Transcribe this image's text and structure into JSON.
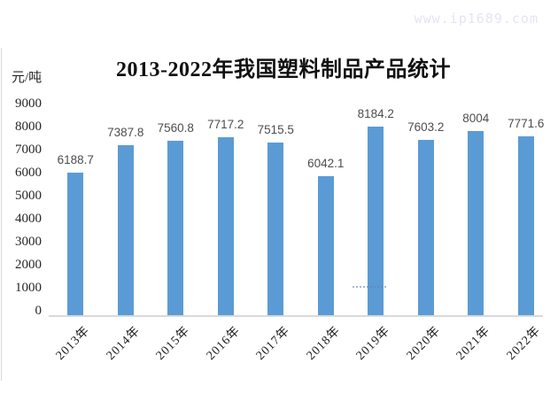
{
  "watermark": "www.ip1689.com",
  "chart_data": {
    "type": "bar",
    "title": "2013-2022年我国塑料制品产品统计",
    "unit_label": "元/吨",
    "categories": [
      "2013年",
      "2014年",
      "2015年",
      "2016年",
      "2017年",
      "2018年",
      "2019年",
      "2020年",
      "2021年",
      "2022年"
    ],
    "values": [
      6188.7,
      7387.8,
      7560.8,
      7717.2,
      7515.5,
      6042.1,
      8184.2,
      7603.2,
      8004,
      7771.6
    ],
    "data_labels": [
      "6188.7",
      "7387.8",
      "7560.8",
      "7717.2",
      "7515.5",
      "6042.1",
      "8184.2",
      "7603.2",
      "8004",
      "7771.6"
    ],
    "yticks": [
      0,
      1000,
      2000,
      3000,
      4000,
      5000,
      6000,
      7000,
      8000,
      9000
    ],
    "ylim": [
      0,
      9000
    ],
    "xlabel": "",
    "ylabel": "元/吨",
    "grid": false,
    "legend": "none",
    "bar_color": "#5b9bd5",
    "axis_color": "#d9d9d9",
    "value_label_color": "#4d4d4d",
    "watermark_color": "#e4e4f4"
  }
}
